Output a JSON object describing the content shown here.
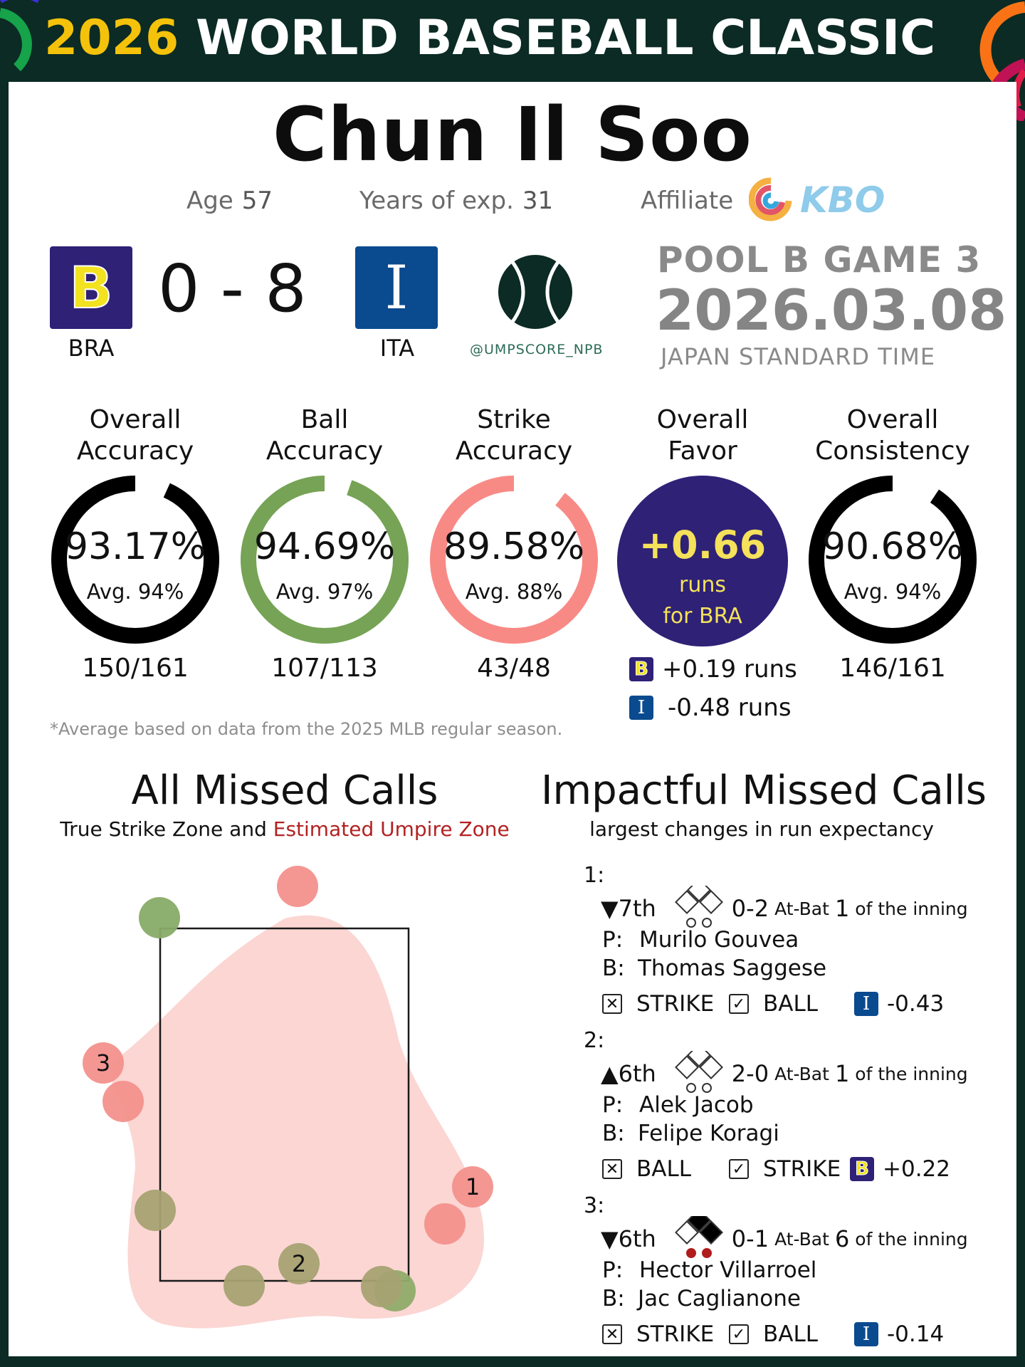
{
  "header": {
    "year": "2026",
    "title": "WORLD BASEBALL CLASSIC"
  },
  "umpire": {
    "name": "Chun Il Soo",
    "age_label": "Age",
    "age": "57",
    "exp_label": "Years of exp.",
    "exp": "31",
    "affiliate_label": "Affiliate",
    "affiliate": "KBO"
  },
  "game": {
    "home": {
      "code": "BRA",
      "letter": "B",
      "color": "#2e2176",
      "letter_color": "#f2e21f"
    },
    "away": {
      "code": "ITA",
      "letter": "I",
      "color": "#0a4a8f",
      "letter_color": "#ffffff"
    },
    "score": "0 - 8",
    "handle": "@UMPSCORE_NPB",
    "pool": "POOL B GAME 3",
    "date": "2026.03.08",
    "timezone": "JAPAN STANDARD TIME"
  },
  "stats": [
    {
      "title1": "Overall",
      "title2": "Accuracy",
      "value": "93.17%",
      "avg": "Avg. 94%",
      "frac": "150/161",
      "pct": 0.9317,
      "color": "#000000"
    },
    {
      "title1": "Ball",
      "title2": "Accuracy",
      "value": "94.69%",
      "avg": "Avg. 97%",
      "frac": "107/113",
      "pct": 0.9469,
      "color": "#76a355"
    },
    {
      "title1": "Strike",
      "title2": "Accuracy",
      "value": "89.58%",
      "avg": "Avg. 88%",
      "frac": "43/48",
      "pct": 0.8958,
      "color": "#f88a86"
    },
    {
      "title1": "Overall",
      "title2": "Consistency",
      "value": "90.68%",
      "avg": "Avg. 94%",
      "frac": "146/161",
      "pct": 0.9068,
      "color": "#000000"
    }
  ],
  "favor": {
    "title1": "Overall",
    "title2": "Favor",
    "value": "+0.66",
    "line1": "runs",
    "line2": "for BRA",
    "bra_runs": "+0.19 runs",
    "ita_runs": "-0.48 runs",
    "color": "#2e2176"
  },
  "footnote": "*Average based on data from the 2025 MLB regular season.",
  "missed": {
    "title": "All Missed Calls",
    "sub_a": "True Strike Zone and ",
    "sub_b": "Estimated Umpire Zone",
    "labels": [
      "1",
      "2",
      "3"
    ]
  },
  "impactful": {
    "title": "Impactful Missed Calls",
    "sub": "largest changes in run expectancy",
    "calls": [
      {
        "num": "1:",
        "inning": "▼7th",
        "count": "0-2",
        "atbat_label": "At-Bat",
        "atbat": "1",
        "of": "of the inning",
        "p_label": "P:",
        "pitcher": "Murilo Gouvea",
        "b_label": "B:",
        "batter": "Thomas Saggese",
        "call": "STRIKE",
        "should": "BALL",
        "team": "ITA",
        "delta": "-0.43",
        "runners": [
          false,
          false,
          false
        ],
        "outs": [
          false,
          false
        ]
      },
      {
        "num": "2:",
        "inning": "▲6th",
        "count": "2-0",
        "atbat_label": "At-Bat",
        "atbat": "1",
        "of": "of the inning",
        "p_label": "P:",
        "pitcher": "Alek Jacob",
        "b_label": "B:",
        "batter": "Felipe Koragi",
        "call": "BALL",
        "should": "STRIKE",
        "team": "BRA",
        "delta": "+0.22",
        "runners": [
          false,
          false,
          false
        ],
        "outs": [
          false,
          false
        ]
      },
      {
        "num": "3:",
        "inning": "▼6th",
        "count": "0-1",
        "atbat_label": "At-Bat",
        "atbat": "6",
        "of": "of the inning",
        "p_label": "P:",
        "pitcher": "Hector Villarroel",
        "b_label": "B:",
        "batter": "Jac Caglianone",
        "call": "STRIKE",
        "should": "BALL",
        "team": "ITA",
        "delta": "-0.14",
        "runners": [
          true,
          true,
          false
        ],
        "outs": [
          true,
          true
        ]
      }
    ]
  }
}
